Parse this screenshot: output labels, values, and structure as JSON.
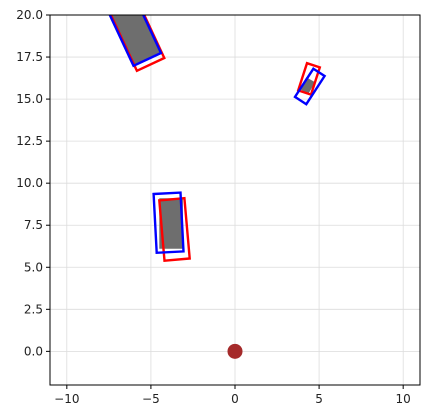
{
  "chart_data": {
    "type": "scatter",
    "title": "",
    "xlabel": "",
    "ylabel": "",
    "xlim": [
      -11,
      11
    ],
    "ylim": [
      -2,
      20
    ],
    "grid": true,
    "x_ticks": [
      -10,
      -5,
      0,
      5,
      10
    ],
    "y_ticks": [
      0.0,
      2.5,
      5.0,
      7.5,
      10.0,
      12.5,
      15.0,
      17.5,
      20.0
    ],
    "x_tick_labels": [
      "−10",
      "−5",
      "0",
      "5",
      "10"
    ],
    "y_tick_labels": [
      "0.0",
      "2.5",
      "5.0",
      "7.5",
      "10.0",
      "12.5",
      "15.0",
      "17.5",
      "20.0"
    ],
    "ego_point": {
      "x": 0,
      "y": 0,
      "color": "#a52a2a"
    },
    "colors": {
      "filled_box": "#6e6e6e",
      "red_box": "#ff0000",
      "blue_box": "#0000ff",
      "grid": "#dcdcdc"
    },
    "objects": [
      {
        "filled": {
          "cx": -6.4,
          "cy": 19.9,
          "length": 5.6,
          "width": 1.8,
          "angle_deg": 115
        },
        "red": {
          "cx": -6.2,
          "cy": 19.6,
          "length": 5.6,
          "width": 1.8,
          "angle_deg": 115
        },
        "blue": {
          "cx": -6.4,
          "cy": 19.9,
          "length": 5.6,
          "width": 1.8,
          "angle_deg": 115
        }
      },
      {
        "filled": {
          "cx": 4.3,
          "cy": 15.8,
          "length": 0.8,
          "width": 0.6,
          "angle_deg": 60
        },
        "red": {
          "cx": 4.4,
          "cy": 16.2,
          "length": 1.7,
          "width": 0.8,
          "angle_deg": 72
        },
        "blue": {
          "cx": 4.45,
          "cy": 15.75,
          "length": 2.0,
          "width": 0.8,
          "angle_deg": 57
        }
      },
      {
        "filled": {
          "cx": -3.8,
          "cy": 7.6,
          "length": 3.0,
          "width": 1.4,
          "angle_deg": 90
        },
        "red": {
          "cx": -3.6,
          "cy": 7.25,
          "length": 3.6,
          "width": 1.5,
          "angle_deg": 95
        },
        "blue": {
          "cx": -3.95,
          "cy": 7.65,
          "length": 3.5,
          "width": 1.6,
          "angle_deg": 93
        }
      }
    ]
  }
}
